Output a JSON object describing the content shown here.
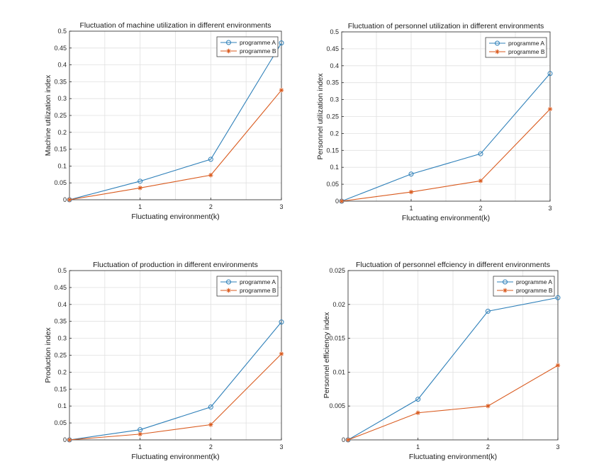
{
  "colors": {
    "programme_a": "#2f80b9",
    "programme_b": "#d95a1e",
    "grid": "#e0e0e0",
    "axis": "#262626"
  },
  "chart_data": [
    {
      "type": "line",
      "title": "Fluctuation of machine utilization in different environments",
      "xlabel": "Fluctuating environment(k)",
      "ylabel": "Machine utilization index",
      "x": [
        0,
        1,
        2,
        3
      ],
      "xticks": [
        "1",
        "2",
        "3"
      ],
      "xtick_values": [
        1,
        2,
        3
      ],
      "xlim": [
        0,
        3
      ],
      "ylim": [
        0,
        0.5
      ],
      "yticks": [
        "0",
        "0.05",
        "0.1",
        "0.15",
        "0.2",
        "0.25",
        "0.3",
        "0.35",
        "0.4",
        "0.45",
        "0.5"
      ],
      "ytick_values": [
        0,
        0.05,
        0.1,
        0.15,
        0.2,
        0.25,
        0.3,
        0.35,
        0.4,
        0.45,
        0.5
      ],
      "grid": true,
      "legend_position": "top-right",
      "series": [
        {
          "name": "programme A",
          "marker": "circle",
          "values": [
            0,
            0.055,
            0.12,
            0.465
          ]
        },
        {
          "name": "programme B",
          "marker": "star",
          "values": [
            0,
            0.035,
            0.073,
            0.325
          ]
        }
      ]
    },
    {
      "type": "line",
      "title": "Fluctuation of personnel utilization in different environments",
      "xlabel": "Fluctuating environment(k)",
      "ylabel": "Personnel utilization index",
      "x": [
        0,
        1,
        2,
        3
      ],
      "xticks": [
        "1",
        "2",
        "3"
      ],
      "xtick_values": [
        1,
        2,
        3
      ],
      "xlim": [
        0,
        3
      ],
      "ylim": [
        0,
        0.5
      ],
      "yticks": [
        "0",
        "0.05",
        "0.1",
        "0.15",
        "0.2",
        "0.25",
        "0.3",
        "0.35",
        "0.4",
        "0.45",
        "0.5"
      ],
      "ytick_values": [
        0,
        0.05,
        0.1,
        0.15,
        0.2,
        0.25,
        0.3,
        0.35,
        0.4,
        0.45,
        0.5
      ],
      "grid": true,
      "legend_position": "top-right",
      "series": [
        {
          "name": "programme A",
          "marker": "circle",
          "values": [
            0,
            0.08,
            0.14,
            0.377
          ]
        },
        {
          "name": "programme B",
          "marker": "star",
          "values": [
            0,
            0.027,
            0.06,
            0.272
          ]
        }
      ]
    },
    {
      "type": "line",
      "title": "Fluctuation of production in different environments",
      "xlabel": "Fluctuating environment(k)",
      "ylabel": "Production index",
      "x": [
        0,
        1,
        2,
        3
      ],
      "xticks": [
        "1",
        "2",
        "3"
      ],
      "xtick_values": [
        1,
        2,
        3
      ],
      "xlim": [
        0,
        3
      ],
      "ylim": [
        0,
        0.5
      ],
      "yticks": [
        "0",
        "0.05",
        "0.1",
        "0.15",
        "0.2",
        "0.25",
        "0.3",
        "0.35",
        "0.4",
        "0.45",
        "0.5"
      ],
      "ytick_values": [
        0,
        0.05,
        0.1,
        0.15,
        0.2,
        0.25,
        0.3,
        0.35,
        0.4,
        0.45,
        0.5
      ],
      "grid": true,
      "legend_position": "top-right",
      "series": [
        {
          "name": "programme A",
          "marker": "circle",
          "values": [
            0,
            0.03,
            0.097,
            0.348
          ]
        },
        {
          "name": "programme B",
          "marker": "star",
          "values": [
            0,
            0.017,
            0.045,
            0.254
          ]
        }
      ]
    },
    {
      "type": "line",
      "title": "Fluctuation of personnel effciency in different environments",
      "xlabel": "Fluctuating environment(k)",
      "ylabel": "Personnel efficiency index",
      "x": [
        0,
        1,
        2,
        3
      ],
      "xticks": [
        "1",
        "2",
        "3"
      ],
      "xtick_values": [
        1,
        2,
        3
      ],
      "xlim": [
        0,
        3
      ],
      "ylim": [
        0,
        0.025
      ],
      "yticks": [
        "0",
        "0.005",
        "0.01",
        "0.015",
        "0.02",
        "0.025"
      ],
      "ytick_values": [
        0,
        0.005,
        0.01,
        0.015,
        0.02,
        0.025
      ],
      "grid": true,
      "legend_position": "top-right",
      "series": [
        {
          "name": "programme A",
          "marker": "circle",
          "values": [
            0,
            0.006,
            0.019,
            0.021
          ]
        },
        {
          "name": "programme B",
          "marker": "star",
          "values": [
            0,
            0.004,
            0.005,
            0.011
          ]
        }
      ]
    }
  ]
}
